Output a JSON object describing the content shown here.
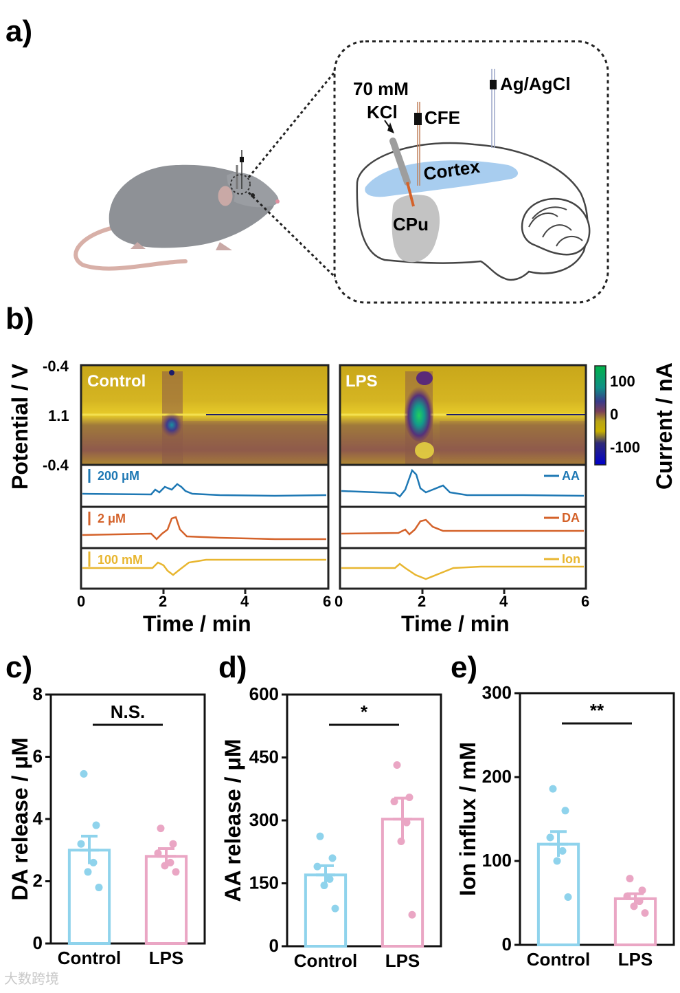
{
  "panel_labels": [
    "a)",
    "b)",
    "c)",
    "d)",
    "e)"
  ],
  "panel_a": {
    "electrode_labels": {
      "kcl_line1": "70 mM",
      "kcl_line2": "KCl",
      "cfe": "CFE",
      "ref": "Ag/AgCl"
    },
    "brain_labels": {
      "cortex": "Cortex",
      "cpu": "CPu"
    }
  },
  "panel_b": {
    "ylabel": "Potential / V",
    "colorbar_label": "Current / nA",
    "colorbar_ticks": [
      "100",
      "0",
      "-100"
    ],
    "potential_ticks": [
      "-0.4",
      "1.1",
      "-0.4"
    ],
    "xlabel": "Time / min",
    "x_ticks_left": [
      "0",
      "2",
      "4",
      "6"
    ],
    "x_ticks_right": [
      "0",
      "2",
      "4",
      "6"
    ],
    "heatmap_titles": [
      "Control",
      "LPS"
    ],
    "scale_bars": {
      "aa": "200 μM",
      "da": "2 μM",
      "ion": "100 mM"
    },
    "legend": {
      "aa": "AA",
      "da": "DA",
      "ion": "Ion"
    },
    "colors": {
      "aa": "#1e78b4",
      "da": "#d4622a",
      "ion": "#e8b630"
    }
  },
  "chart_data": [
    {
      "id": "c",
      "type": "bar",
      "title": "N.S.",
      "categories": [
        "Control",
        "LPS"
      ],
      "values": [
        3.0,
        2.8
      ],
      "errors": [
        0.45,
        0.25
      ],
      "points": [
        [
          5.45,
          3.8,
          3.2,
          2.6,
          2.3,
          1.8
        ],
        [
          3.7,
          3.2,
          2.9,
          2.6,
          2.5,
          2.3
        ]
      ],
      "ylabel": "DA release / μM",
      "xlabel": "",
      "ylim": [
        0,
        8
      ],
      "yticks": [
        "0",
        "2",
        "4",
        "6",
        "8"
      ],
      "colors": [
        "#8fd3ec",
        "#eaa6c4"
      ]
    },
    {
      "id": "d",
      "type": "bar",
      "title": "*",
      "categories": [
        "Control",
        "LPS"
      ],
      "values": [
        170,
        303
      ],
      "errors": [
        22,
        50
      ],
      "points": [
        [
          262,
          210,
          190,
          160,
          145,
          90
        ],
        [
          432,
          355,
          345,
          295,
          250,
          75
        ]
      ],
      "ylabel": "AA release / μM",
      "xlabel": "",
      "ylim": [
        0,
        600
      ],
      "yticks": [
        "0",
        "150",
        "300",
        "450",
        "600"
      ],
      "colors": [
        "#8fd3ec",
        "#eaa6c4"
      ]
    },
    {
      "id": "e",
      "type": "bar",
      "title": "**",
      "categories": [
        "Control",
        "LPS"
      ],
      "values": [
        120,
        55
      ],
      "errors": [
        15,
        6
      ],
      "points": [
        [
          186,
          160,
          128,
          112,
          100,
          57
        ],
        [
          79,
          65,
          58,
          52,
          46,
          38
        ]
      ],
      "ylabel": "Ion influx / mM",
      "xlabel": "",
      "ylim": [
        0,
        300
      ],
      "yticks": [
        "0",
        "100",
        "200",
        "300"
      ],
      "colors": [
        "#8fd3ec",
        "#eaa6c4"
      ]
    }
  ],
  "watermark": "大数跨境"
}
